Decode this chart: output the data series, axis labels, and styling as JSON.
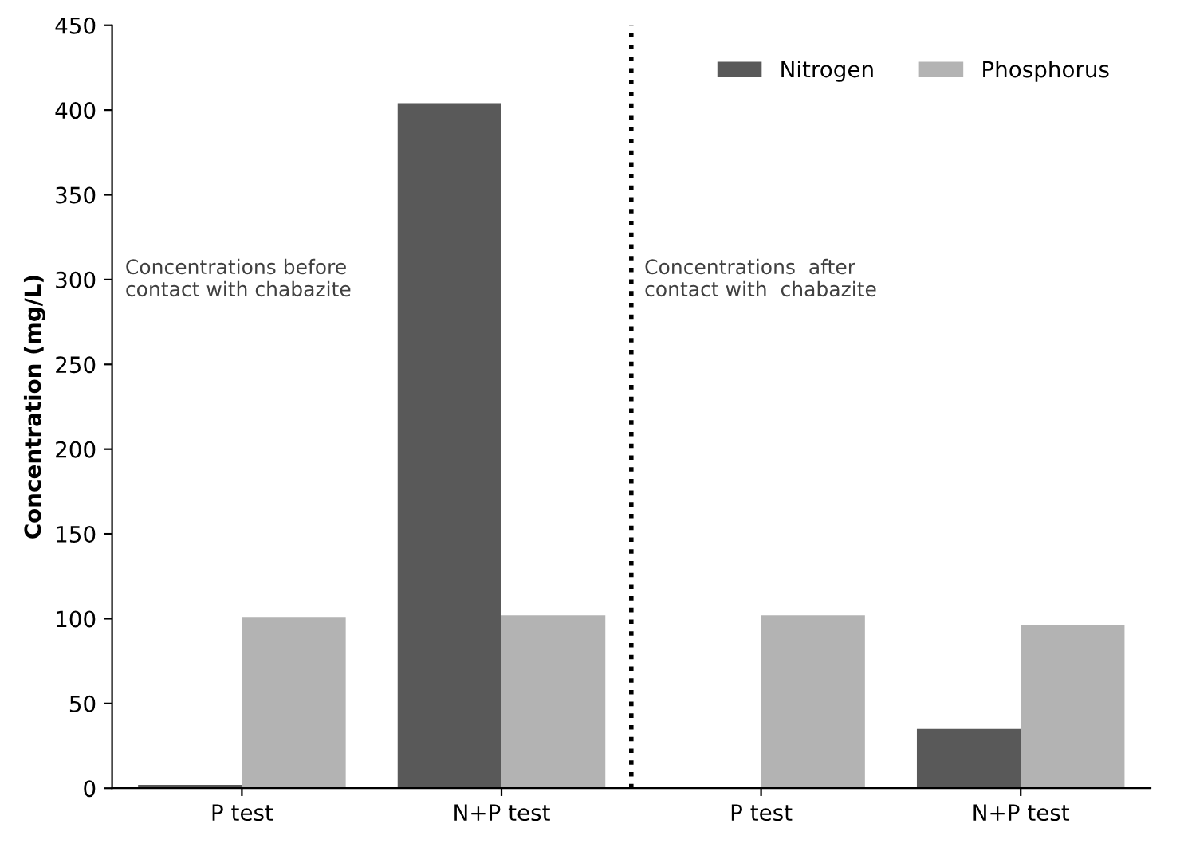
{
  "chart_data": {
    "type": "bar",
    "ylabel": "Concentration (mg/L)",
    "categories": [
      "P test",
      "N+P test",
      "P test",
      "N+P test"
    ],
    "series": [
      {
        "name": "Nitrogen",
        "color": "#595959",
        "values": [
          2,
          404,
          0,
          35
        ]
      },
      {
        "name": "Phosphorus",
        "color": "#b3b3b3",
        "values": [
          101,
          102,
          102,
          96
        ]
      }
    ],
    "ylim": [
      0,
      450
    ],
    "yticks": [
      0,
      50,
      100,
      150,
      200,
      250,
      300,
      350,
      400,
      450
    ],
    "annotations": [
      "Concentrations before\ncontact with chabazite",
      "Concentrations  after\ncontact with  chabazite"
    ],
    "legend": "top right",
    "grid": false
  }
}
